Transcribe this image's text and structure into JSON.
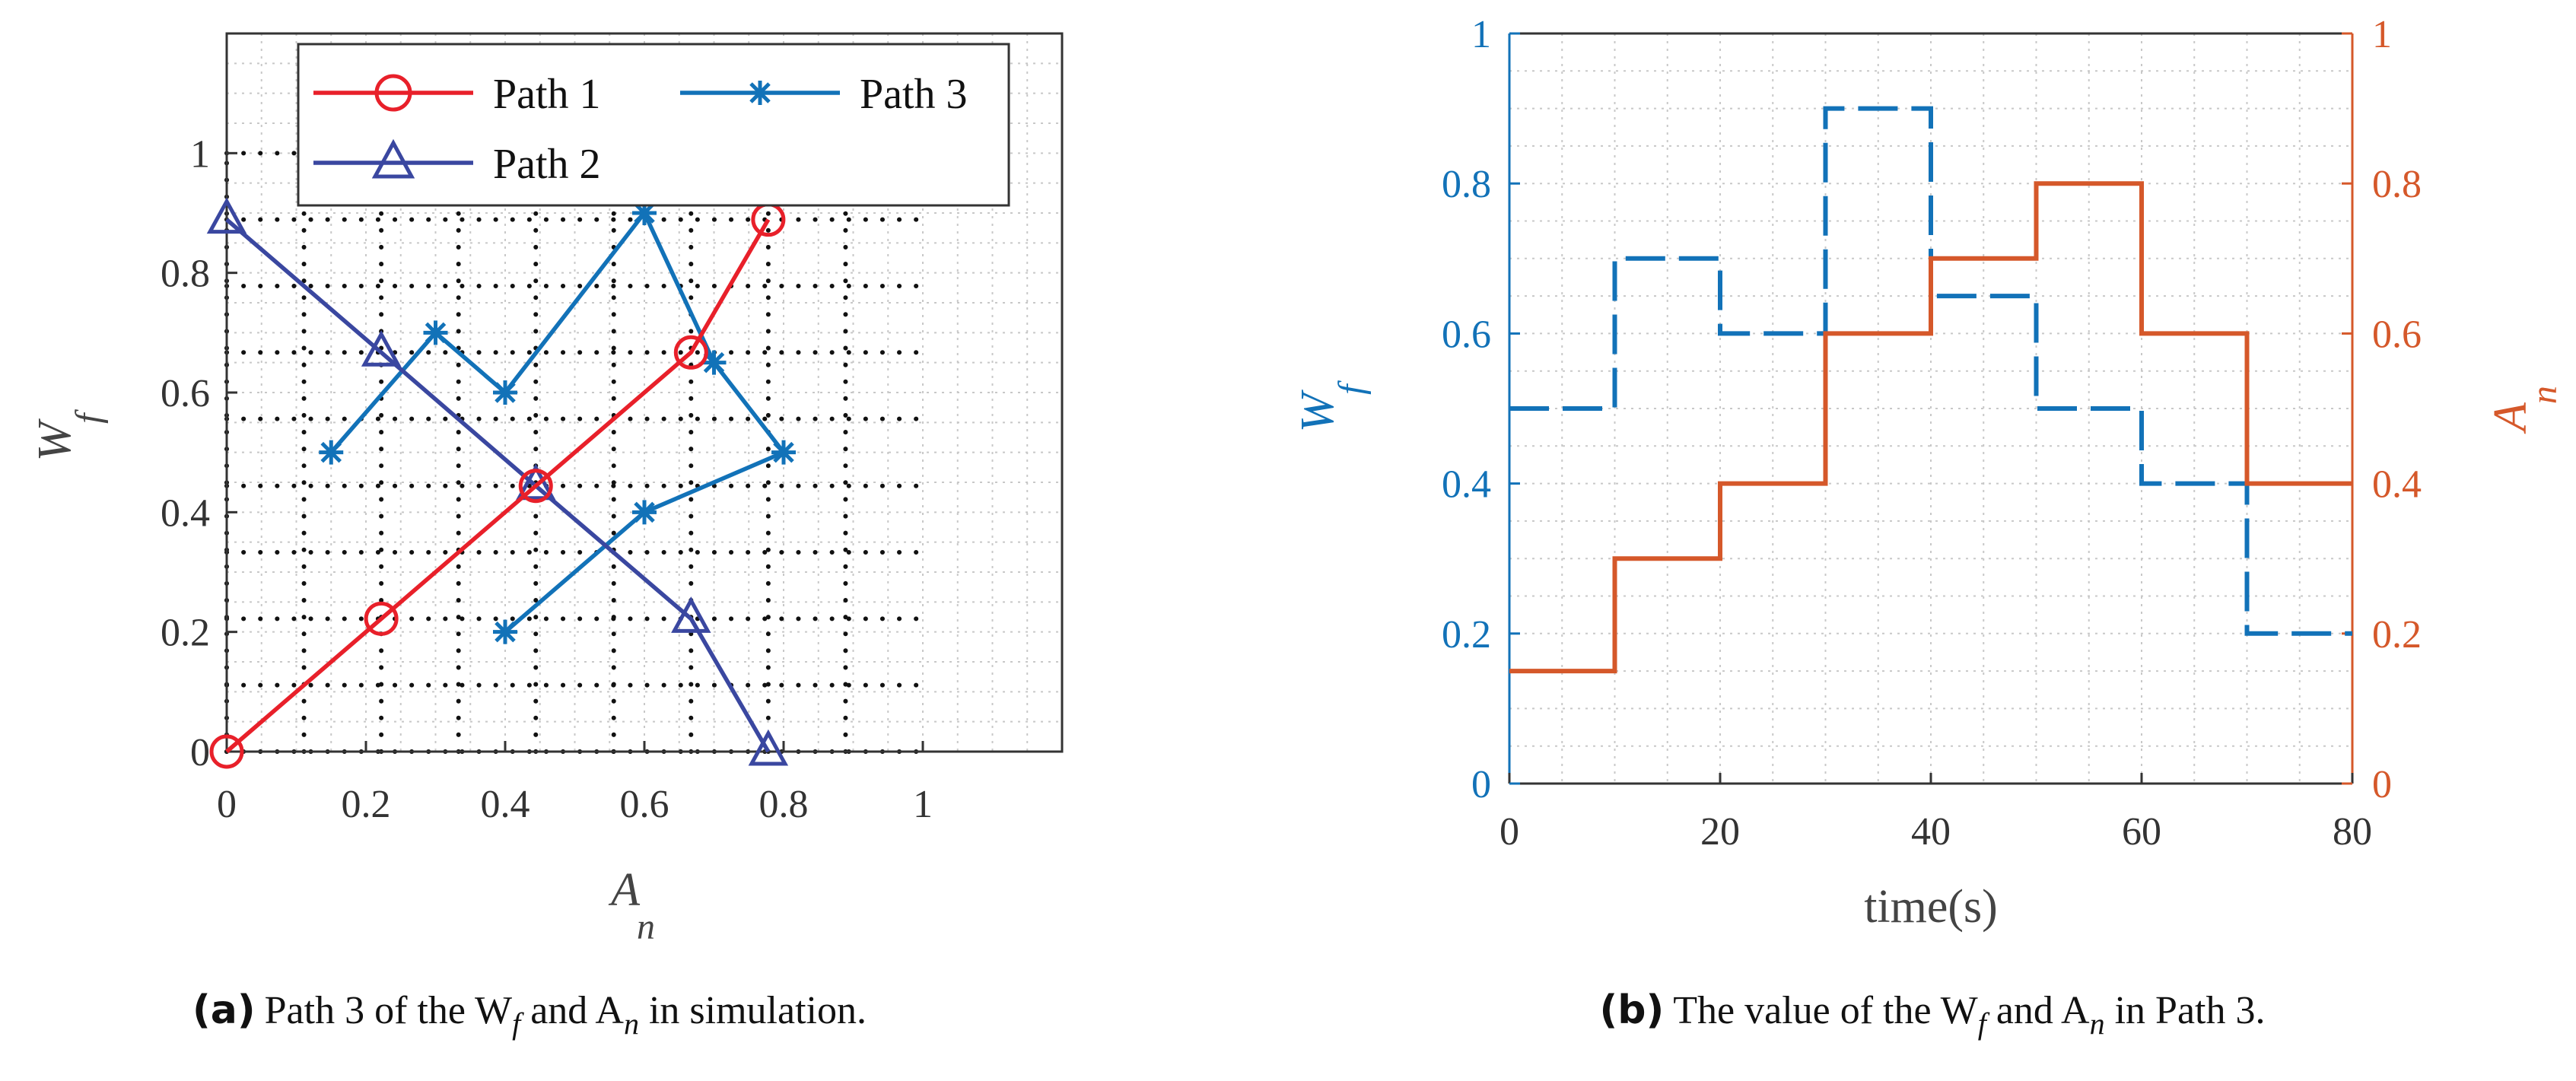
{
  "colors": {
    "path1": "#e8202a",
    "path2": "#3a47a0",
    "path3": "#1272b8",
    "wf_axis": "#1272b8",
    "an_axis": "#d5582a",
    "grid_minor": "#c8c8c8",
    "grid_dots": "#111111",
    "axes": "#333333"
  },
  "chart_data": [
    {
      "id": "a",
      "type": "line",
      "caption_label": "(a)",
      "caption_text": "Path 3 of the W",
      "caption_sub1": "f",
      "caption_mid": " and A",
      "caption_sub2": "n",
      "caption_end": " in simulation.",
      "xlabel_main": "A",
      "xlabel_sub": "n",
      "ylabel_main": "W",
      "ylabel_sub": "f",
      "xlim": [
        0,
        1.2
      ],
      "ylim": [
        0,
        1.2
      ],
      "xticks": [
        0,
        0.2,
        0.4,
        0.6,
        0.8,
        1
      ],
      "xtick_labels": [
        "0",
        "0.2",
        "0.4",
        "0.6",
        "0.8",
        "1"
      ],
      "yticks": [
        0,
        0.2,
        0.4,
        0.6,
        0.8,
        1
      ],
      "ytick_labels": [
        "0",
        "0.2",
        "0.4",
        "0.6",
        "0.8",
        "1"
      ],
      "dotted_grid_lines": [
        0,
        0.111,
        0.222,
        0.333,
        0.444,
        0.556,
        0.667,
        0.778,
        0.889
      ],
      "dotted_grid_max": 1,
      "legend_position": "top",
      "series": [
        {
          "name": "Path 1",
          "marker": "circle",
          "color_key": "path1",
          "x": [
            0,
            0.222,
            0.444,
            0.667,
            0.778
          ],
          "y": [
            0,
            0.222,
            0.444,
            0.667,
            0.889
          ]
        },
        {
          "name": "Path 2",
          "marker": "triangle",
          "color_key": "path2",
          "x": [
            0,
            0.222,
            0.444,
            0.667,
            0.778
          ],
          "y": [
            0.889,
            0.667,
            0.444,
            0.222,
            0
          ]
        },
        {
          "name": "Path 3",
          "marker": "star",
          "color_key": "path3",
          "x": [
            0.4,
            0.6,
            0.8,
            0.7,
            0.6,
            0.4,
            0.3,
            0.15
          ],
          "y": [
            0.2,
            0.4,
            0.5,
            0.65,
            0.9,
            0.6,
            0.7,
            0.5
          ]
        }
      ]
    },
    {
      "id": "b",
      "type": "line",
      "caption_label": "(b)",
      "caption_text": "The value of the W",
      "caption_sub1": "f",
      "caption_mid": " and A",
      "caption_sub2": "n",
      "caption_end": " in Path 3.",
      "xlabel": "time(s)",
      "left_ylabel_main": "W",
      "left_ylabel_sub": "f",
      "right_ylabel_main": "A",
      "right_ylabel_sub": "n",
      "xlim": [
        0,
        80
      ],
      "ylim": [
        0,
        1
      ],
      "xticks": [
        0,
        20,
        40,
        60,
        80
      ],
      "xtick_labels": [
        "0",
        "20",
        "40",
        "60",
        "80"
      ],
      "yticks": [
        0,
        0.2,
        0.4,
        0.6,
        0.8,
        1
      ],
      "ytick_labels": [
        "0",
        "0.2",
        "0.4",
        "0.6",
        "0.8",
        "1"
      ],
      "series": [
        {
          "name": "W_f",
          "style": "dashed-step",
          "axis": "left",
          "color_key": "wf_axis",
          "x": [
            0,
            10,
            20,
            30,
            40,
            50,
            60,
            70,
            80
          ],
          "y": [
            0.5,
            0.7,
            0.6,
            0.9,
            0.65,
            0.5,
            0.4,
            0.2,
            0.2
          ]
        },
        {
          "name": "A_n",
          "style": "solid-step",
          "axis": "right",
          "color_key": "an_axis",
          "x": [
            0,
            10,
            20,
            30,
            40,
            50,
            60,
            70,
            80
          ],
          "y": [
            0.15,
            0.3,
            0.4,
            0.6,
            0.7,
            0.8,
            0.6,
            0.4,
            0.4
          ]
        }
      ]
    }
  ]
}
